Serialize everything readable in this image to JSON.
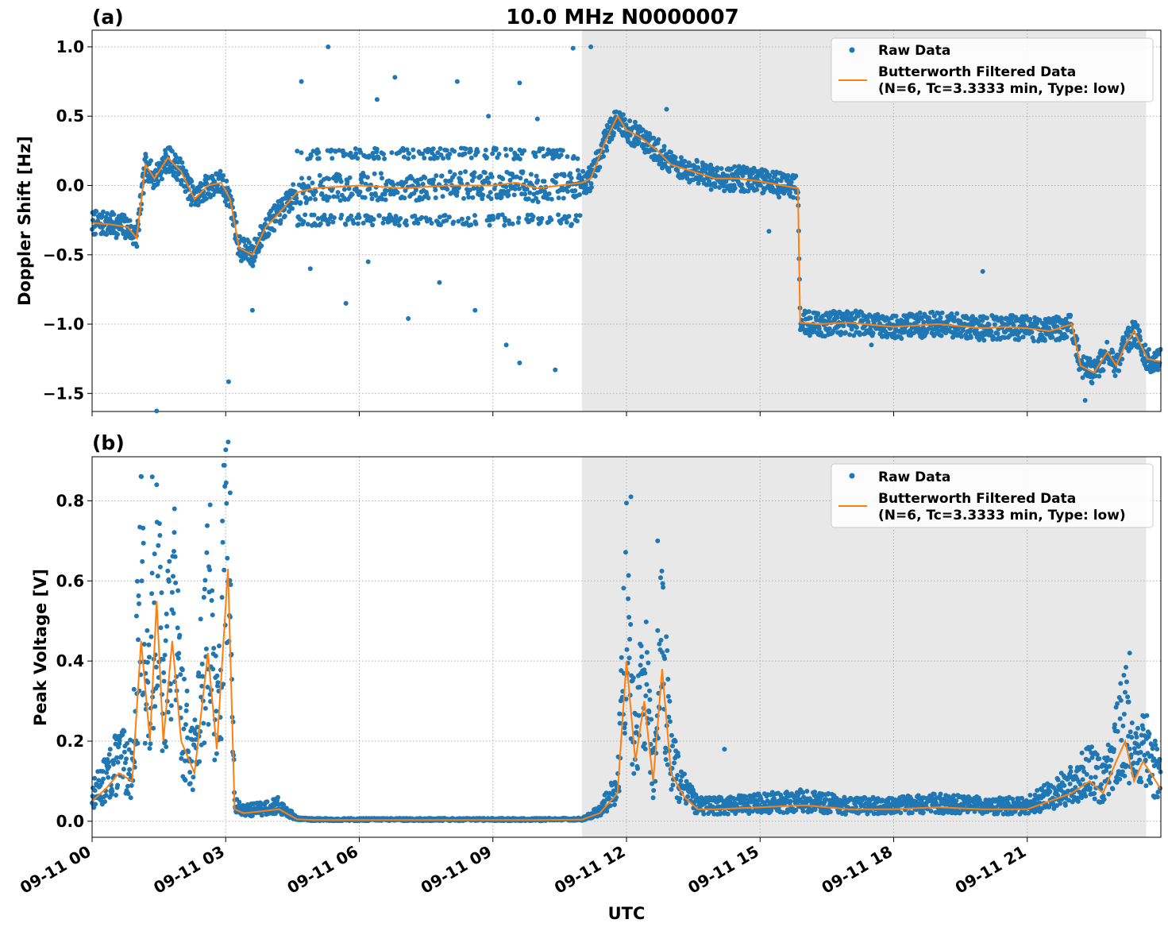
{
  "colors": {
    "raw": "#1f77b4",
    "filtered": "#ff7f0e",
    "shade": "#e8e8e8",
    "grid": "#b0b0b0"
  },
  "figure": {
    "title": "10.0 MHz N0000007",
    "xlabel": "UTC",
    "x_ticks": [
      "09-11 00",
      "09-11 03",
      "09-11 06",
      "09-11 09",
      "09-11 12",
      "09-11 15",
      "09-11 18",
      "09-11 21"
    ],
    "shaded_region_utc": [
      "09-11 11:00",
      "09-11 23:40"
    ],
    "legend": {
      "raw_label": "Raw Data",
      "filtered_label_line1": "Butterworth Filtered Data",
      "filtered_label_line2": "(N=6, Tc=3.3333 min, Type: low)"
    }
  },
  "chart_data": [
    {
      "type": "scatter",
      "panel_label": "(a)",
      "title": "10.0 MHz N0000007",
      "ylabel": "Doppler Shift [Hz]",
      "xlabel": "",
      "x_unit": "hours UTC on 09-11",
      "xlim": [
        0,
        24
      ],
      "ylim": [
        -1.63,
        1.12
      ],
      "y_ticks": [
        1.0,
        0.5,
        0.0,
        -0.5,
        -1.0,
        -1.5
      ],
      "y_tick_labels": [
        "1.0",
        "0.5",
        "0.0",
        "−0.5",
        "−1.0",
        "−1.5"
      ],
      "grid": true,
      "legend_position": "top-right",
      "series": [
        {
          "name": "Butterworth Filtered Data",
          "style": "line",
          "x": [
            0,
            0.4,
            0.8,
            1.0,
            1.2,
            1.4,
            1.7,
            2.0,
            2.3,
            2.6,
            2.9,
            3.1,
            3.3,
            3.6,
            3.9,
            4.2,
            4.6,
            5.0,
            6.0,
            7.0,
            8.0,
            9.0,
            9.5,
            10.0,
            10.5,
            11.0,
            11.2,
            11.5,
            11.8,
            12.0,
            12.3,
            12.7,
            13.0,
            13.5,
            14.0,
            14.5,
            15.0,
            15.5,
            15.85,
            15.9,
            16.3,
            17.0,
            18.0,
            19.0,
            20.0,
            20.5,
            21.0,
            21.5,
            22.0,
            22.2,
            22.5,
            22.8,
            23.0,
            23.2,
            23.4,
            23.7,
            24.0
          ],
          "y": [
            -0.27,
            -0.28,
            -0.3,
            -0.38,
            0.15,
            0.05,
            0.2,
            0.1,
            -0.1,
            0.0,
            0.02,
            -0.1,
            -0.45,
            -0.5,
            -0.3,
            -0.2,
            -0.05,
            -0.02,
            0.0,
            -0.02,
            0.0,
            0.0,
            0.02,
            -0.02,
            0.0,
            0.02,
            0.05,
            0.3,
            0.5,
            0.4,
            0.35,
            0.25,
            0.15,
            0.1,
            0.05,
            0.05,
            0.03,
            0.0,
            -0.02,
            -0.99,
            -1.0,
            -0.99,
            -1.02,
            -1.0,
            -1.03,
            -1.02,
            -1.03,
            -1.05,
            -1.0,
            -1.3,
            -1.35,
            -1.2,
            -1.3,
            -1.15,
            -1.05,
            -1.25,
            -1.27
          ]
        },
        {
          "name": "Raw Data",
          "style": "points",
          "outliers_x": [
            5.3,
            6.8,
            8.2,
            9.6,
            10.8,
            11.2,
            4.9,
            6.2,
            7.8,
            9.3,
            10.4,
            9.6,
            8.6,
            7.1,
            5.7,
            3.6,
            12.9,
            15.2,
            17.5,
            20.0,
            22.3,
            4.7,
            6.4,
            8.9,
            10.0
          ],
          "outliers_y": [
            1.0,
            0.78,
            0.75,
            0.74,
            0.99,
            1.0,
            -0.6,
            -0.55,
            -0.7,
            -1.15,
            -1.33,
            -1.28,
            -0.9,
            -0.96,
            -0.85,
            -0.9,
            0.55,
            -0.33,
            -1.15,
            -0.62,
            -1.55,
            0.75,
            0.62,
            0.5,
            0.48
          ]
        }
      ]
    },
    {
      "type": "scatter",
      "panel_label": "(b)",
      "title": "",
      "ylabel": "Peak Voltage [V]",
      "xlabel": "UTC",
      "x_unit": "hours UTC on 09-11",
      "xlim": [
        0,
        24
      ],
      "ylim": [
        -0.04,
        0.91
      ],
      "y_ticks": [
        0.8,
        0.6,
        0.4,
        0.2,
        0.0
      ],
      "y_tick_labels": [
        "0.8",
        "0.6",
        "0.4",
        "0.2",
        "0.0"
      ],
      "grid": true,
      "legend_position": "top-right",
      "series": [
        {
          "name": "Butterworth Filtered Data",
          "style": "line",
          "x": [
            0,
            0.3,
            0.6,
            0.9,
            1.1,
            1.3,
            1.45,
            1.6,
            1.8,
            2.0,
            2.3,
            2.6,
            2.8,
            3.05,
            3.2,
            3.4,
            3.8,
            4.2,
            4.6,
            5.0,
            6.0,
            8.0,
            10.0,
            11.0,
            11.4,
            11.8,
            12.0,
            12.2,
            12.4,
            12.6,
            12.8,
            13.0,
            13.3,
            13.6,
            14.0,
            15.0,
            16.0,
            17.0,
            18.0,
            19.0,
            20.0,
            21.0,
            21.5,
            22.0,
            22.4,
            22.7,
            23.0,
            23.2,
            23.4,
            23.6,
            24.0
          ],
          "y": [
            0.05,
            0.08,
            0.12,
            0.1,
            0.45,
            0.2,
            0.55,
            0.2,
            0.45,
            0.2,
            0.12,
            0.42,
            0.18,
            0.63,
            0.03,
            0.02,
            0.025,
            0.03,
            0.005,
            0.003,
            0.003,
            0.003,
            0.003,
            0.004,
            0.02,
            0.07,
            0.4,
            0.15,
            0.3,
            0.1,
            0.38,
            0.12,
            0.06,
            0.03,
            0.03,
            0.035,
            0.04,
            0.03,
            0.03,
            0.035,
            0.03,
            0.03,
            0.05,
            0.07,
            0.1,
            0.07,
            0.15,
            0.2,
            0.1,
            0.15,
            0.08
          ]
        },
        {
          "name": "Raw Data",
          "style": "points",
          "outliers_x": [
            1.35,
            1.45,
            1.85,
            2.65,
            3.1,
            12.1,
            12.7,
            23.3,
            14.2
          ],
          "outliers_y": [
            0.86,
            0.84,
            0.78,
            0.79,
            0.82,
            0.81,
            0.7,
            0.42,
            0.18
          ]
        }
      ]
    }
  ]
}
